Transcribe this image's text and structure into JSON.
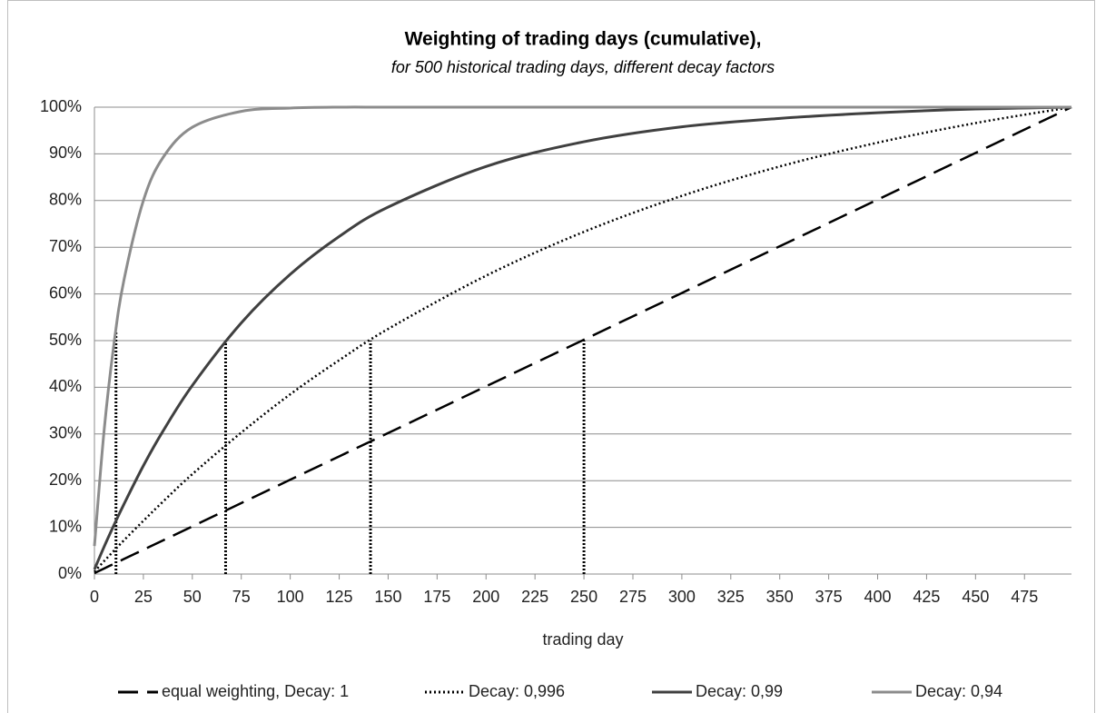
{
  "chart_data": {
    "type": "line",
    "title": "Weighting of trading days (cumulative),",
    "subtitle": "for 500 historical trading days, different decay factors",
    "x_label": "trading day",
    "x": [
      0,
      5,
      10,
      15,
      25,
      35,
      50,
      75,
      100,
      125,
      150,
      200,
      250,
      300,
      350,
      400,
      450,
      499
    ],
    "series": [
      {
        "name": "equal weighting, Decay: 1",
        "color": "#000000",
        "dash": "dashed",
        "values": [
          0.2,
          1.2,
          2.2,
          3.2,
          5.2,
          7.2,
          10.2,
          15.2,
          20.2,
          25.2,
          30.2,
          40.2,
          50.2,
          60.2,
          70.2,
          80.2,
          90.2,
          100
        ]
      },
      {
        "name": "Decay: 0,996",
        "color": "#000000",
        "dash": "dotted",
        "values": [
          0.5,
          2.8,
          5.0,
          7.2,
          11.4,
          15.5,
          21.4,
          30.3,
          38.5,
          45.8,
          52.5,
          63.9,
          73.3,
          81.0,
          87.3,
          92.4,
          96.6,
          100
        ]
      },
      {
        "name": "Decay: 0,99",
        "color": "#404040",
        "dash": "solid",
        "values": [
          1.0,
          5.9,
          10.5,
          14.9,
          23.2,
          30.6,
          40.4,
          53.8,
          64.2,
          72.3,
          78.6,
          87.3,
          92.6,
          95.8,
          97.6,
          98.8,
          99.6,
          100
        ]
      },
      {
        "name": "Decay: 0,94",
        "color": "#8c8c8c",
        "dash": "solid",
        "values": [
          6.0,
          31.0,
          49.4,
          62.8,
          80.0,
          89.2,
          95.7,
          99.1,
          99.8,
          100,
          100,
          100,
          100,
          100,
          100,
          100,
          100,
          100
        ]
      }
    ],
    "reference_lines": [
      {
        "x": 11,
        "y": 52
      },
      {
        "x": 67,
        "y": 50
      },
      {
        "x": 141,
        "y": 50
      },
      {
        "x": 250,
        "y": 50
      }
    ],
    "xlim": [
      0,
      499
    ],
    "xticks": [
      0,
      25,
      50,
      75,
      100,
      125,
      150,
      175,
      200,
      225,
      250,
      275,
      300,
      325,
      350,
      375,
      400,
      425,
      450,
      475
    ],
    "ylim": [
      0,
      100
    ],
    "yticks": [
      {
        "value": 0,
        "label": "0%"
      },
      {
        "value": 10,
        "label": "10%"
      },
      {
        "value": 20,
        "label": "20%"
      },
      {
        "value": 30,
        "label": "30%"
      },
      {
        "value": 40,
        "label": "40%"
      },
      {
        "value": 50,
        "label": "50%"
      },
      {
        "value": 60,
        "label": "60%"
      },
      {
        "value": 70,
        "label": "70%"
      },
      {
        "value": 80,
        "label": "80%"
      },
      {
        "value": 90,
        "label": "90%"
      },
      {
        "value": 100,
        "label": "100%"
      }
    ],
    "grid": true,
    "legend": "bottom"
  }
}
